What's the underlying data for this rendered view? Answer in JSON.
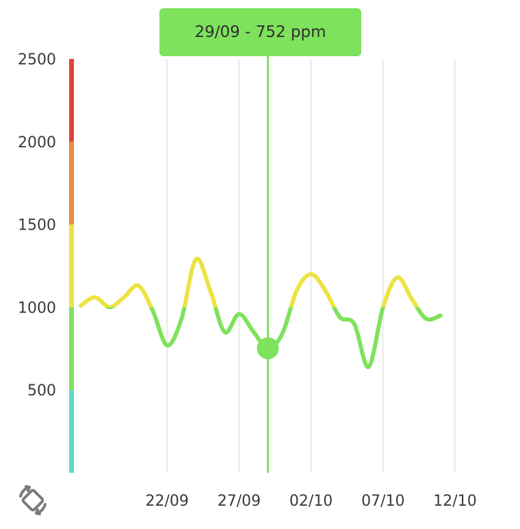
{
  "tooltip": {
    "text": "29/09 - 752 ppm"
  },
  "icons": {
    "rotate": "screen-rotate-icon"
  },
  "colors": {
    "background": "#ffffff",
    "grid": "#efefef",
    "text": "#3a3a3a",
    "cursor": "#7ee25d",
    "tooltip_bg": "#7ee25d",
    "scale_bands": [
      "#5dd8c8",
      "#7ee25d",
      "#ebe341",
      "#ee8b43",
      "#e0433e"
    ]
  },
  "chart_data": {
    "type": "line",
    "title": "",
    "xlabel": "",
    "ylabel": "",
    "unit": "ppm",
    "ylim": [
      0,
      2500
    ],
    "xlim": [
      "2025-09-16",
      "2025-10-12"
    ],
    "yticks": [
      500,
      1000,
      1500,
      2000,
      2500
    ],
    "xticks": [
      "22/09",
      "27/09",
      "02/10",
      "07/10",
      "12/10"
    ],
    "xtick_dates": [
      "2025-09-22",
      "2025-09-27",
      "2025-10-02",
      "2025-10-07",
      "2025-10-12"
    ],
    "grid": {
      "vertical": true,
      "horizontal": false
    },
    "color_bands": [
      {
        "from": 0,
        "to": 500,
        "color": "#5dd8c8"
      },
      {
        "from": 500,
        "to": 1000,
        "color": "#7ee25d"
      },
      {
        "from": 1000,
        "to": 1500,
        "color": "#ebe341"
      },
      {
        "from": 1500,
        "to": 2000,
        "color": "#ee8b43"
      },
      {
        "from": 2000,
        "to": 2500,
        "color": "#e0433e"
      }
    ],
    "series": [
      {
        "x": [
          "2025-09-16",
          "2025-09-17",
          "2025-09-18",
          "2025-09-19",
          "2025-09-20",
          "2025-09-21",
          "2025-09-22",
          "2025-09-23",
          "2025-09-24",
          "2025-09-25",
          "2025-09-26",
          "2025-09-27",
          "2025-09-28",
          "2025-09-29",
          "2025-09-30",
          "2025-10-01",
          "2025-10-02",
          "2025-10-03",
          "2025-10-04",
          "2025-10-05",
          "2025-10-06",
          "2025-10-07",
          "2025-10-08",
          "2025-10-09",
          "2025-10-10",
          "2025-10-11"
        ],
        "values": [
          1010,
          1060,
          1000,
          1060,
          1130,
          980,
          770,
          930,
          1290,
          1100,
          850,
          960,
          852,
          752,
          840,
          1100,
          1200,
          1100,
          940,
          900,
          640,
          1000,
          1180,
          1050,
          930,
          950
        ]
      }
    ],
    "cursor": {
      "x": "2025-09-29",
      "y": 752
    }
  }
}
